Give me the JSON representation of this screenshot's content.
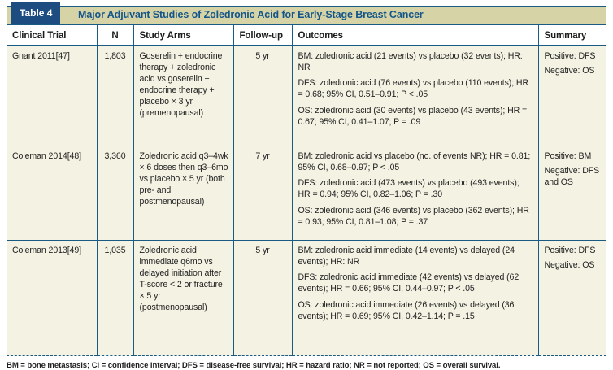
{
  "table": {
    "label": "Table 4",
    "title": "Major Adjuvant Studies of Zoledronic Acid for Early-Stage Breast Cancer",
    "columns": [
      "Clinical Trial",
      "N",
      "Study Arms",
      "Follow-up",
      "Outcomes",
      "Summary"
    ],
    "rows": [
      {
        "trial": "Gnant 2011[47]",
        "n": "1,803",
        "study_arms": "Goserelin + endocrine therapy + zoledronic acid vs goserelin + endocrine therapy + placebo × 3 yr (premenopausal)",
        "follow_up": "5 yr",
        "outcomes": [
          "BM: zoledronic acid (21 events) vs placebo (32 events); HR: NR",
          "DFS: zoledronic acid (76 events) vs placebo (110 events); HR = 0.68; 95% CI, 0.51–0.91; P < .05",
          "OS: zoledronic acid (30 events) vs placebo (43 events); HR = 0.67; 95% CI, 0.41–1.07; P = .09"
        ],
        "summary": [
          "Positive: DFS",
          "Negative: OS"
        ]
      },
      {
        "trial": "Coleman 2014[48]",
        "n": "3,360",
        "study_arms": "Zoledronic acid q3–4wk × 6 doses then q3–6mo vs placebo × 5 yr (both pre- and postmenopausal)",
        "follow_up": "7 yr",
        "outcomes": [
          "BM: zoledronic acid vs placebo (no. of events NR); HR = 0.81; 95% CI, 0.68–0.97; P < .05",
          "DFS: zoledronic acid (473 events) vs placebo (493 events); HR = 0.94; 95% CI, 0.82–1.06; P = .30",
          "OS: zoledronic acid (346 events) vs placebo (362 events); HR = 0.93; 95% CI, 0.81–1.08; P = .37"
        ],
        "summary": [
          "Positive: BM",
          "Negative: DFS and OS"
        ]
      },
      {
        "trial": "Coleman 2013[49]",
        "n": "1,035",
        "study_arms": "Zoledronic acid immediate q6mo vs delayed initiation after T-score < 2 or fracture × 5 yr (postmenopausal)",
        "follow_up": "5 yr",
        "outcomes": [
          "BM: zoledronic acid immediate (14 events) vs delayed (24 events); HR: NR",
          "DFS: zoledronic acid immediate (42 events) vs delayed (62 events); HR = 0.66; 95% CI, 0.44–0.97; P < .05",
          "OS: zoledronic acid immediate (26 events) vs delayed (36 events); HR = 0.69; 95% CI, 0.42–1.14; P = .15"
        ],
        "summary": [
          "Positive: DFS",
          "Negative: OS"
        ]
      }
    ],
    "footnote": "BM = bone metastasis; CI = confidence interval; DFS = disease-free survival; HR = hazard ratio; NR = not reported; OS = overall survival.",
    "colors": {
      "label_box_bg": "#1c4c80",
      "title_band_bg": "#d6d3a7",
      "title_text": "#14568a",
      "border_blue": "#1a5b84",
      "row_bg": "#f4f2e3",
      "header_row_bg": "#ffffff"
    }
  }
}
